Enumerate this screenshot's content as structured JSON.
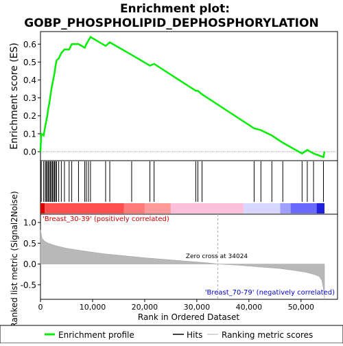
{
  "title_line1": "Enrichment plot:",
  "title_line2": "GOBP_PHOSPHOLIPID_DEPHOSPHORYLATION",
  "top_ylabel": "Enrichment score (ES)",
  "bottom_ylabel": "Ranked list metric (Signal2Noise)",
  "xlabel": "Rank in Ordered Dataset",
  "pos_label": "'Breast_30-39' (positively correlated)",
  "neg_label": "'Breast_70-79' (negatively correlated)",
  "zero_cross_label": "Zero cross at 34024",
  "legend": {
    "enrichment": "Enrichment profile",
    "hits": "Hits",
    "metric": "Ranking metric scores"
  },
  "colors": {
    "enrichment": "#00ee00",
    "hits": "#000000",
    "metric": "#b0b0b0",
    "pos_label": "#cc0000",
    "neg_label": "#0000cc"
  },
  "chart_data": {
    "type": "line",
    "x_ticks": [
      "0",
      "10,000",
      "20,000",
      "30,000",
      "40,000",
      "50,000"
    ],
    "x_tick_values": [
      0,
      10000,
      20000,
      30000,
      40000,
      50000
    ],
    "xlim": [
      0,
      57000
    ],
    "es_ylim": [
      -0.05,
      0.67
    ],
    "es_ticks": [
      0.0,
      0.1,
      0.2,
      0.3,
      0.4,
      0.5,
      0.6
    ],
    "es_tick_labels": [
      "0.0",
      "0.1",
      "0.2",
      "0.3",
      "0.4",
      "0.5",
      "0.6"
    ],
    "metric_ylim": [
      -0.85,
      1.2
    ],
    "metric_ticks": [
      1.0,
      0.5,
      0.0,
      -0.5
    ],
    "metric_tick_labels": [
      "1.0",
      "0.5",
      "0.0",
      "-0.5"
    ],
    "zero_cross": 34024,
    "n_ranks": 54500,
    "hits": [
      150,
      600,
      900,
      1100,
      1300,
      1500,
      1700,
      1900,
      2100,
      2300,
      2500,
      2700,
      2900,
      3100,
      3500,
      4000,
      4600,
      5500,
      6000,
      7300,
      8500,
      8800,
      9200,
      9600,
      12500,
      13300,
      17500,
      21000,
      21800,
      29800,
      30200,
      31000,
      41000,
      42300,
      44400,
      46500,
      50200,
      51200,
      52400,
      54300
    ],
    "es_profile": [
      [
        0,
        0.0
      ],
      [
        150,
        0.1
      ],
      [
        600,
        0.09
      ],
      [
        900,
        0.14
      ],
      [
        1100,
        0.17
      ],
      [
        1300,
        0.2
      ],
      [
        1500,
        0.24
      ],
      [
        1700,
        0.27
      ],
      [
        1900,
        0.31
      ],
      [
        2100,
        0.35
      ],
      [
        2300,
        0.38
      ],
      [
        2500,
        0.41
      ],
      [
        2700,
        0.44
      ],
      [
        2900,
        0.48
      ],
      [
        3100,
        0.51
      ],
      [
        3500,
        0.52
      ],
      [
        4000,
        0.55
      ],
      [
        4600,
        0.57
      ],
      [
        5500,
        0.57
      ],
      [
        6000,
        0.6
      ],
      [
        7300,
        0.6
      ],
      [
        8500,
        0.58
      ],
      [
        8800,
        0.6
      ],
      [
        9200,
        0.62
      ],
      [
        9600,
        0.64
      ],
      [
        12500,
        0.59
      ],
      [
        13300,
        0.61
      ],
      [
        17500,
        0.54
      ],
      [
        21000,
        0.48
      ],
      [
        21800,
        0.49
      ],
      [
        29800,
        0.34
      ],
      [
        30200,
        0.34
      ],
      [
        31000,
        0.32
      ],
      [
        41000,
        0.13
      ],
      [
        42300,
        0.12
      ],
      [
        44400,
        0.09
      ],
      [
        46500,
        0.05
      ],
      [
        50200,
        -0.01
      ],
      [
        51200,
        0.01
      ],
      [
        52400,
        -0.01
      ],
      [
        54300,
        -0.03
      ],
      [
        54500,
        0.0
      ]
    ],
    "metric_curve": [
      [
        0,
        0.82
      ],
      [
        300,
        0.62
      ],
      [
        800,
        0.55
      ],
      [
        1500,
        0.5
      ],
      [
        3000,
        0.44
      ],
      [
        5000,
        0.38
      ],
      [
        8000,
        0.32
      ],
      [
        12000,
        0.25
      ],
      [
        16000,
        0.2
      ],
      [
        20000,
        0.15
      ],
      [
        24000,
        0.11
      ],
      [
        28000,
        0.07
      ],
      [
        32000,
        0.03
      ],
      [
        34024,
        0.0
      ],
      [
        38000,
        -0.03
      ],
      [
        42000,
        -0.07
      ],
      [
        46000,
        -0.11
      ],
      [
        49000,
        -0.16
      ],
      [
        51000,
        -0.2
      ],
      [
        52500,
        -0.25
      ],
      [
        53500,
        -0.3
      ],
      [
        54000,
        -0.4
      ],
      [
        54300,
        -0.6
      ],
      [
        54500,
        -0.82
      ]
    ]
  }
}
